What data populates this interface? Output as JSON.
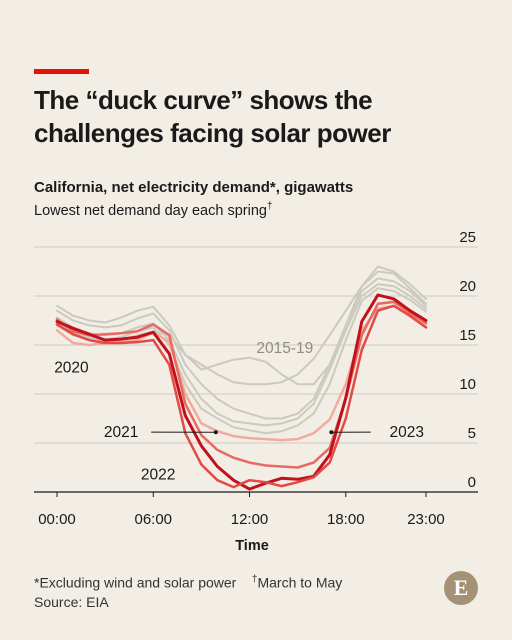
{
  "headline": "The “duck curve” shows the challenges facing solar power",
  "chart_data": {
    "type": "line",
    "title": "California, net electricity demand*, gigawatts",
    "subtitle": "Lowest net demand day each spring",
    "subtitle_mark": "†",
    "xlabel": "Time",
    "x_ticks": [
      "00:00",
      "06:00",
      "12:00",
      "18:00",
      "23:00"
    ],
    "x_tick_hours": [
      0,
      6,
      12,
      18,
      23
    ],
    "ylim": [
      0,
      25
    ],
    "y_ticks": [
      0,
      5,
      10,
      15,
      20,
      25
    ],
    "grid": true,
    "x": [
      0,
      1,
      2,
      3,
      4,
      5,
      6,
      7,
      8,
      9,
      10,
      11,
      12,
      13,
      14,
      15,
      16,
      17,
      18,
      19,
      20,
      21,
      22,
      23
    ],
    "series": [
      {
        "name": "",
        "group": "2015-19",
        "color": "#ccc9bf",
        "values": [
          19.0,
          18.0,
          17.5,
          17.3,
          17.8,
          18.5,
          18.9,
          17.0,
          14.0,
          13.0,
          12.0,
          11.2,
          11.0,
          11.0,
          11.2,
          12.0,
          13.6,
          16.0,
          18.5,
          21.0,
          22.5,
          22.3,
          20.8,
          19.2
        ]
      },
      {
        "name": "",
        "group": "2015-19",
        "color": "#ccc9bf",
        "values": [
          18.5,
          17.5,
          17.0,
          16.8,
          17.0,
          17.7,
          18.2,
          16.5,
          13.0,
          11.0,
          9.5,
          8.5,
          8.0,
          7.5,
          7.5,
          8.0,
          9.5,
          13.0,
          17.0,
          20.5,
          21.8,
          21.5,
          20.5,
          19.0
        ]
      },
      {
        "name": "",
        "group": "2015-19",
        "color": "#ccc9bf",
        "values": [
          17.8,
          16.8,
          16.2,
          16.0,
          16.2,
          16.8,
          17.2,
          15.5,
          12.0,
          9.5,
          8.0,
          7.2,
          7.0,
          6.8,
          7.0,
          7.5,
          9.0,
          12.5,
          16.5,
          20.0,
          21.2,
          21.0,
          20.0,
          18.7
        ]
      },
      {
        "name": "",
        "group": "2015-19",
        "color": "#ccc9bf",
        "values": [
          17.3,
          16.3,
          15.8,
          15.6,
          15.8,
          16.4,
          16.8,
          15.0,
          11.0,
          8.5,
          7.5,
          6.6,
          6.3,
          6.0,
          6.2,
          6.8,
          8.0,
          11.0,
          15.5,
          19.5,
          20.8,
          20.5,
          19.6,
          18.4
        ]
      },
      {
        "name": "",
        "group": "2015-19",
        "color": "#ccc9bf",
        "values": [
          17.0,
          16.0,
          15.6,
          15.4,
          15.5,
          16.0,
          16.4,
          16.0,
          14.0,
          12.5,
          13.0,
          13.5,
          13.7,
          13.3,
          12.0,
          11.0,
          11.0,
          13.0,
          17.0,
          21.0,
          23.0,
          22.5,
          21.2,
          19.7
        ]
      },
      {
        "name": "2020",
        "color": "#f2aa9c",
        "values": [
          16.5,
          15.2,
          15.0,
          15.2,
          15.3,
          15.5,
          16.3,
          15.3,
          10.0,
          7.0,
          6.2,
          5.7,
          5.5,
          5.4,
          5.3,
          5.4,
          6.0,
          7.4,
          11.0,
          16.5,
          18.7,
          19.0,
          17.9,
          16.8
        ]
      },
      {
        "name": "2021",
        "color": "#e8695f",
        "values": [
          17.6,
          16.4,
          16.0,
          16.1,
          16.2,
          16.4,
          17.1,
          16.0,
          9.0,
          5.8,
          4.3,
          3.5,
          3.0,
          2.7,
          2.6,
          2.5,
          3.0,
          4.5,
          9.5,
          16.0,
          19.2,
          19.4,
          18.3,
          17.2
        ]
      },
      {
        "name": "2022",
        "color": "#c2111d",
        "values": [
          17.4,
          16.7,
          16.1,
          15.5,
          15.6,
          15.8,
          16.3,
          14.1,
          7.8,
          4.7,
          2.6,
          1.2,
          0.3,
          0.9,
          1.4,
          1.3,
          1.6,
          3.8,
          9.6,
          17.4,
          20.1,
          19.7,
          18.5,
          17.5
        ]
      },
      {
        "name": "2023",
        "color": "#e24a45",
        "values": [
          17.1,
          16.1,
          15.5,
          15.2,
          15.2,
          15.3,
          15.5,
          13.0,
          6.0,
          2.8,
          1.2,
          0.5,
          1.2,
          1.0,
          0.6,
          1.0,
          1.5,
          3.0,
          7.5,
          14.5,
          18.5,
          19.0,
          18.0,
          16.8
        ]
      }
    ],
    "annotations": [
      {
        "text": "2015-19",
        "x": 14.2,
        "y": 14.2
      },
      {
        "text": "2020",
        "x": 0.9,
        "y": 12.2
      },
      {
        "text": "2021",
        "x": 4.0,
        "y": 5.6,
        "leader_to": [
          9.9,
          6.0
        ]
      },
      {
        "text": "2022",
        "x": 6.3,
        "y": 1.3
      },
      {
        "text": "2023",
        "x": 21.8,
        "y": 5.6,
        "leader_from": [
          17.1,
          6.0
        ]
      }
    ]
  },
  "footnotes": {
    "star": "*Excluding wind and solar power",
    "dagger_mark": "†",
    "dagger": "March to May",
    "source": "Source: EIA"
  },
  "logo_letter": "E",
  "colors": {
    "accent": "#e3120b",
    "background": "#f2eee5",
    "grid": "#cfcbc2",
    "logo": "#a59276"
  }
}
